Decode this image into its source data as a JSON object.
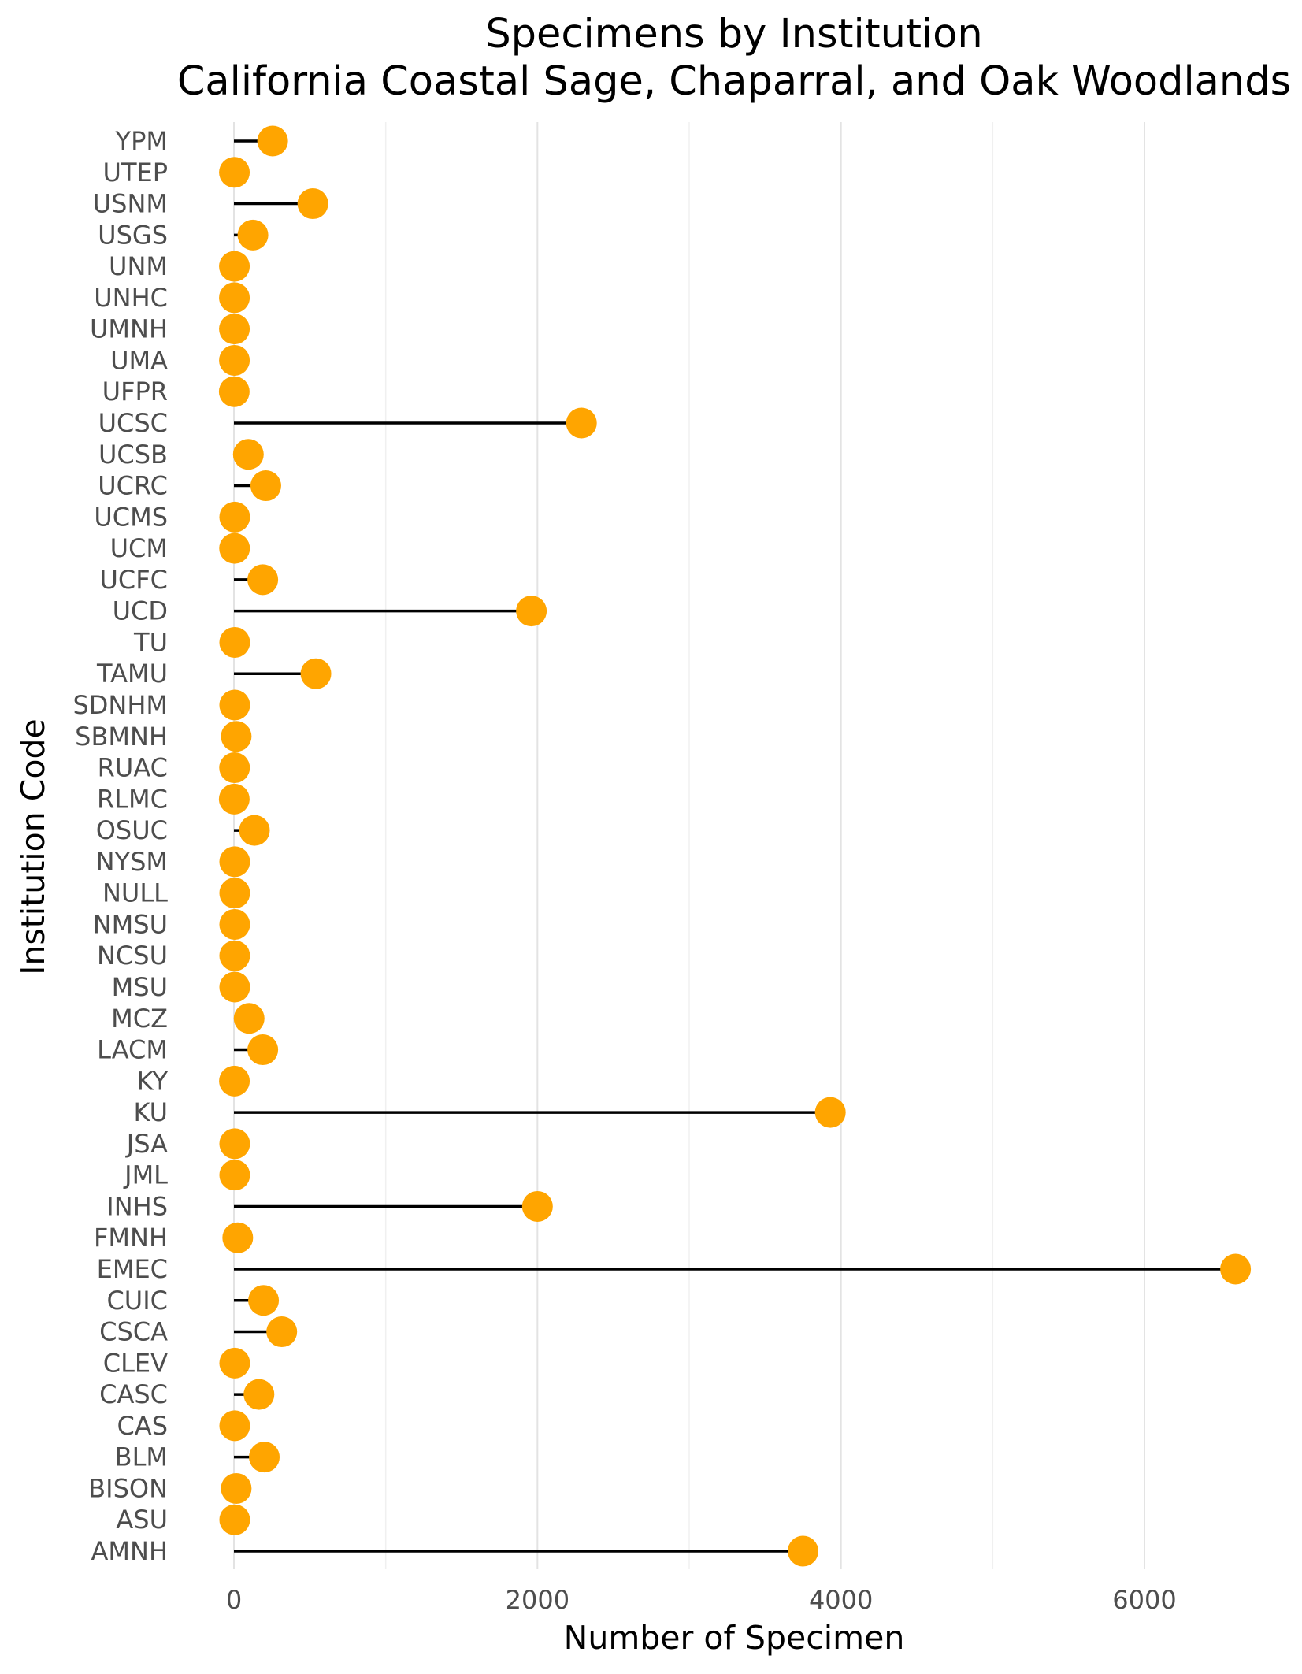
{
  "chart_data": {
    "type": "lollipop",
    "title": "Specimens by Institution",
    "subtitle": "California Coastal Sage, Chaparral, and Oak Woodlands",
    "xlabel": "Number of Specimen",
    "ylabel": "Institution Code",
    "xlim": [
      0,
      6800
    ],
    "x_ticks": [
      0,
      2000,
      4000,
      6000
    ],
    "x_tick_labels": [
      "0",
      "2000",
      "4000",
      "6000"
    ],
    "grid": true,
    "point_color": "#FFA500",
    "stem_color": "#000000",
    "categories": [
      "YPM",
      "UTEP",
      "USNM",
      "USGS",
      "UNM",
      "UNHC",
      "UMNH",
      "UMA",
      "UFPR",
      "UCSC",
      "UCSB",
      "UCRC",
      "UCMS",
      "UCM",
      "UCFC",
      "UCD",
      "TU",
      "TAMU",
      "SDNHM",
      "SBMNH",
      "RUAC",
      "RLMC",
      "OSUC",
      "NYSM",
      "NULL",
      "NMSU",
      "NCSU",
      "MSU",
      "MCZ",
      "LACM",
      "KY",
      "KU",
      "JSA",
      "JML",
      "INHS",
      "FMNH",
      "EMEC",
      "CUIC",
      "CSCA",
      "CLEV",
      "CASC",
      "CAS",
      "BLM",
      "BISON",
      "ASU",
      "AMNH"
    ],
    "values": [
      255,
      3,
      520,
      125,
      3,
      3,
      3,
      3,
      2,
      2290,
      95,
      210,
      5,
      4,
      190,
      1960,
      5,
      540,
      5,
      15,
      4,
      2,
      135,
      5,
      5,
      5,
      5,
      5,
      100,
      190,
      3,
      3930,
      5,
      5,
      2000,
      25,
      6600,
      195,
      315,
      5,
      165,
      5,
      200,
      15,
      5,
      3750
    ]
  }
}
